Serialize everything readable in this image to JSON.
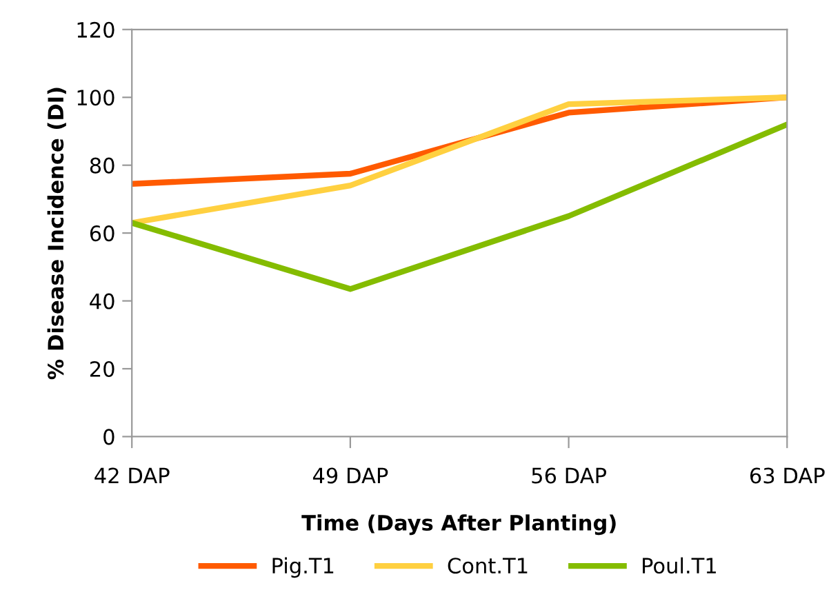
{
  "chart_data": {
    "type": "line",
    "xlabel": "Time (Days After Planting)",
    "ylabel": "% Disease Incidence (DI)",
    "categories": [
      "42 DAP",
      "49 DAP",
      "56 DAP",
      "63 DAP"
    ],
    "series": [
      {
        "name": "Pig.T1",
        "color": "#ff5a00",
        "values": [
          74.5,
          77.5,
          95.5,
          100
        ]
      },
      {
        "name": "Cont.T1",
        "color": "#ffd040",
        "values": [
          63,
          74,
          98,
          100
        ]
      },
      {
        "name": "Poul.T1",
        "color": "#84bc00",
        "values": [
          63,
          43.5,
          65,
          92
        ]
      }
    ],
    "ylim": [
      0,
      120
    ],
    "yticks": [
      0,
      20,
      40,
      60,
      80,
      100,
      120
    ],
    "grid": false,
    "legend": "bottom",
    "marker": "none",
    "line_style": "solid"
  }
}
